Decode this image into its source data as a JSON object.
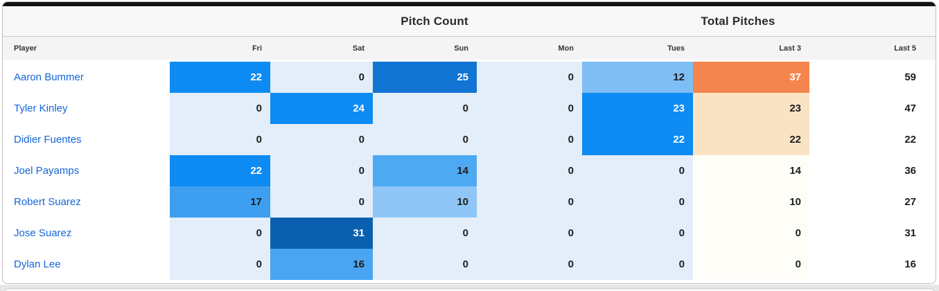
{
  "group_headers": {
    "pitch_count": "Pitch Count",
    "total_pitches": "Total Pitches"
  },
  "columns": [
    "Player",
    "Fri",
    "Sat",
    "Sun",
    "Mon",
    "Tues",
    "Last 3",
    "Last 5"
  ],
  "players": [
    {
      "name": "Aaron Bummer",
      "cells": [
        {
          "v": "22",
          "bg": "#0e8bf2",
          "fg": "#ffffff"
        },
        {
          "v": "0",
          "bg": "#e4eefa",
          "fg": "#1d1d1f"
        },
        {
          "v": "25",
          "bg": "#1274d3",
          "fg": "#ffffff"
        },
        {
          "v": "0",
          "bg": "#e4eefa",
          "fg": "#1d1d1f"
        },
        {
          "v": "12",
          "bg": "#7fbdf5",
          "fg": "#1d1d1f"
        },
        {
          "v": "37",
          "bg": "#f5854e",
          "fg": "#ffffff"
        },
        {
          "v": "59",
          "bg": "transparent",
          "fg": "#1d1d1f"
        }
      ]
    },
    {
      "name": "Tyler Kinley",
      "cells": [
        {
          "v": "0",
          "bg": "#e4eefa",
          "fg": "#1d1d1f"
        },
        {
          "v": "24",
          "bg": "#0e8bf2",
          "fg": "#ffffff"
        },
        {
          "v": "0",
          "bg": "#e4eefa",
          "fg": "#1d1d1f"
        },
        {
          "v": "0",
          "bg": "#e4eefa",
          "fg": "#1d1d1f"
        },
        {
          "v": "23",
          "bg": "#0e8bf2",
          "fg": "#ffffff"
        },
        {
          "v": "23",
          "bg": "#fae3c3",
          "fg": "#1d1d1f"
        },
        {
          "v": "47",
          "bg": "transparent",
          "fg": "#1d1d1f"
        }
      ]
    },
    {
      "name": "Didier Fuentes",
      "cells": [
        {
          "v": "0",
          "bg": "#e4eefa",
          "fg": "#1d1d1f"
        },
        {
          "v": "0",
          "bg": "#e4eefa",
          "fg": "#1d1d1f"
        },
        {
          "v": "0",
          "bg": "#e4eefa",
          "fg": "#1d1d1f"
        },
        {
          "v": "0",
          "bg": "#e4eefa",
          "fg": "#1d1d1f"
        },
        {
          "v": "22",
          "bg": "#0e8bf2",
          "fg": "#ffffff"
        },
        {
          "v": "22",
          "bg": "#fae3c3",
          "fg": "#1d1d1f"
        },
        {
          "v": "22",
          "bg": "transparent",
          "fg": "#1d1d1f"
        }
      ]
    },
    {
      "name": "Joel Payamps",
      "cells": [
        {
          "v": "22",
          "bg": "#0e8bf2",
          "fg": "#ffffff"
        },
        {
          "v": "0",
          "bg": "#e4eefa",
          "fg": "#1d1d1f"
        },
        {
          "v": "14",
          "bg": "#4ea9f3",
          "fg": "#1d1d1f"
        },
        {
          "v": "0",
          "bg": "#e4eefa",
          "fg": "#1d1d1f"
        },
        {
          "v": "0",
          "bg": "#e4eefa",
          "fg": "#1d1d1f"
        },
        {
          "v": "14",
          "bg": "#fffdf8",
          "fg": "#1d1d1f"
        },
        {
          "v": "36",
          "bg": "transparent",
          "fg": "#1d1d1f"
        }
      ]
    },
    {
      "name": "Robert Suarez",
      "cells": [
        {
          "v": "17",
          "bg": "#3e9ff0",
          "fg": "#1d1d1f"
        },
        {
          "v": "0",
          "bg": "#e4eefa",
          "fg": "#1d1d1f"
        },
        {
          "v": "10",
          "bg": "#8fc6f7",
          "fg": "#1d1d1f"
        },
        {
          "v": "0",
          "bg": "#e4eefa",
          "fg": "#1d1d1f"
        },
        {
          "v": "0",
          "bg": "#e4eefa",
          "fg": "#1d1d1f"
        },
        {
          "v": "10",
          "bg": "#fffdf8",
          "fg": "#1d1d1f"
        },
        {
          "v": "27",
          "bg": "transparent",
          "fg": "#1d1d1f"
        }
      ]
    },
    {
      "name": "Jose Suarez",
      "cells": [
        {
          "v": "0",
          "bg": "#e4eefa",
          "fg": "#1d1d1f"
        },
        {
          "v": "31",
          "bg": "#0a60ae",
          "fg": "#ffffff"
        },
        {
          "v": "0",
          "bg": "#e4eefa",
          "fg": "#1d1d1f"
        },
        {
          "v": "0",
          "bg": "#e4eefa",
          "fg": "#1d1d1f"
        },
        {
          "v": "0",
          "bg": "#e4eefa",
          "fg": "#1d1d1f"
        },
        {
          "v": "0",
          "bg": "#fffdf8",
          "fg": "#1d1d1f"
        },
        {
          "v": "31",
          "bg": "transparent",
          "fg": "#1d1d1f"
        }
      ]
    },
    {
      "name": "Dylan Lee",
      "cells": [
        {
          "v": "0",
          "bg": "#e4eefa",
          "fg": "#1d1d1f"
        },
        {
          "v": "16",
          "bg": "#49a4f1",
          "fg": "#1d1d1f"
        },
        {
          "v": "0",
          "bg": "#e4eefa",
          "fg": "#1d1d1f"
        },
        {
          "v": "0",
          "bg": "#e4eefa",
          "fg": "#1d1d1f"
        },
        {
          "v": "0",
          "bg": "#e4eefa",
          "fg": "#1d1d1f"
        },
        {
          "v": "0",
          "bg": "#fffdf8",
          "fg": "#1d1d1f"
        },
        {
          "v": "16",
          "bg": "transparent",
          "fg": "#1d1d1f"
        }
      ]
    }
  ],
  "colors": {
    "heat_blue_max": "#0a60ae",
    "heat_blue_high": "#0e8bf2",
    "heat_blue_zero": "#e4eefa",
    "heat_orange_high": "#f5854e",
    "heat_orange_low": "#fae3c3",
    "player_link": "#1465d6",
    "topbar": "#141414"
  },
  "chart_data": {
    "type": "heatmap",
    "title": "Pitch Count / Total Pitches",
    "column_groups": [
      {
        "label": "Pitch Count",
        "columns": [
          "Fri",
          "Sat",
          "Sun",
          "Mon",
          "Tues"
        ]
      },
      {
        "label": "Total Pitches",
        "columns": [
          "Last 3",
          "Last 5"
        ]
      }
    ],
    "columns": [
      "Fri",
      "Sat",
      "Sun",
      "Mon",
      "Tues",
      "Last 3",
      "Last 5"
    ],
    "rows": [
      "Aaron Bummer",
      "Tyler Kinley",
      "Didier Fuentes",
      "Joel Payamps",
      "Robert Suarez",
      "Jose Suarez",
      "Dylan Lee"
    ],
    "values": [
      [
        22,
        0,
        25,
        0,
        12,
        37,
        59
      ],
      [
        0,
        24,
        0,
        0,
        23,
        23,
        47
      ],
      [
        0,
        0,
        0,
        0,
        22,
        22,
        22
      ],
      [
        22,
        0,
        14,
        0,
        0,
        14,
        36
      ],
      [
        17,
        0,
        10,
        0,
        0,
        10,
        27
      ],
      [
        0,
        31,
        0,
        0,
        0,
        0,
        31
      ],
      [
        0,
        16,
        0,
        0,
        0,
        0,
        16
      ]
    ]
  }
}
